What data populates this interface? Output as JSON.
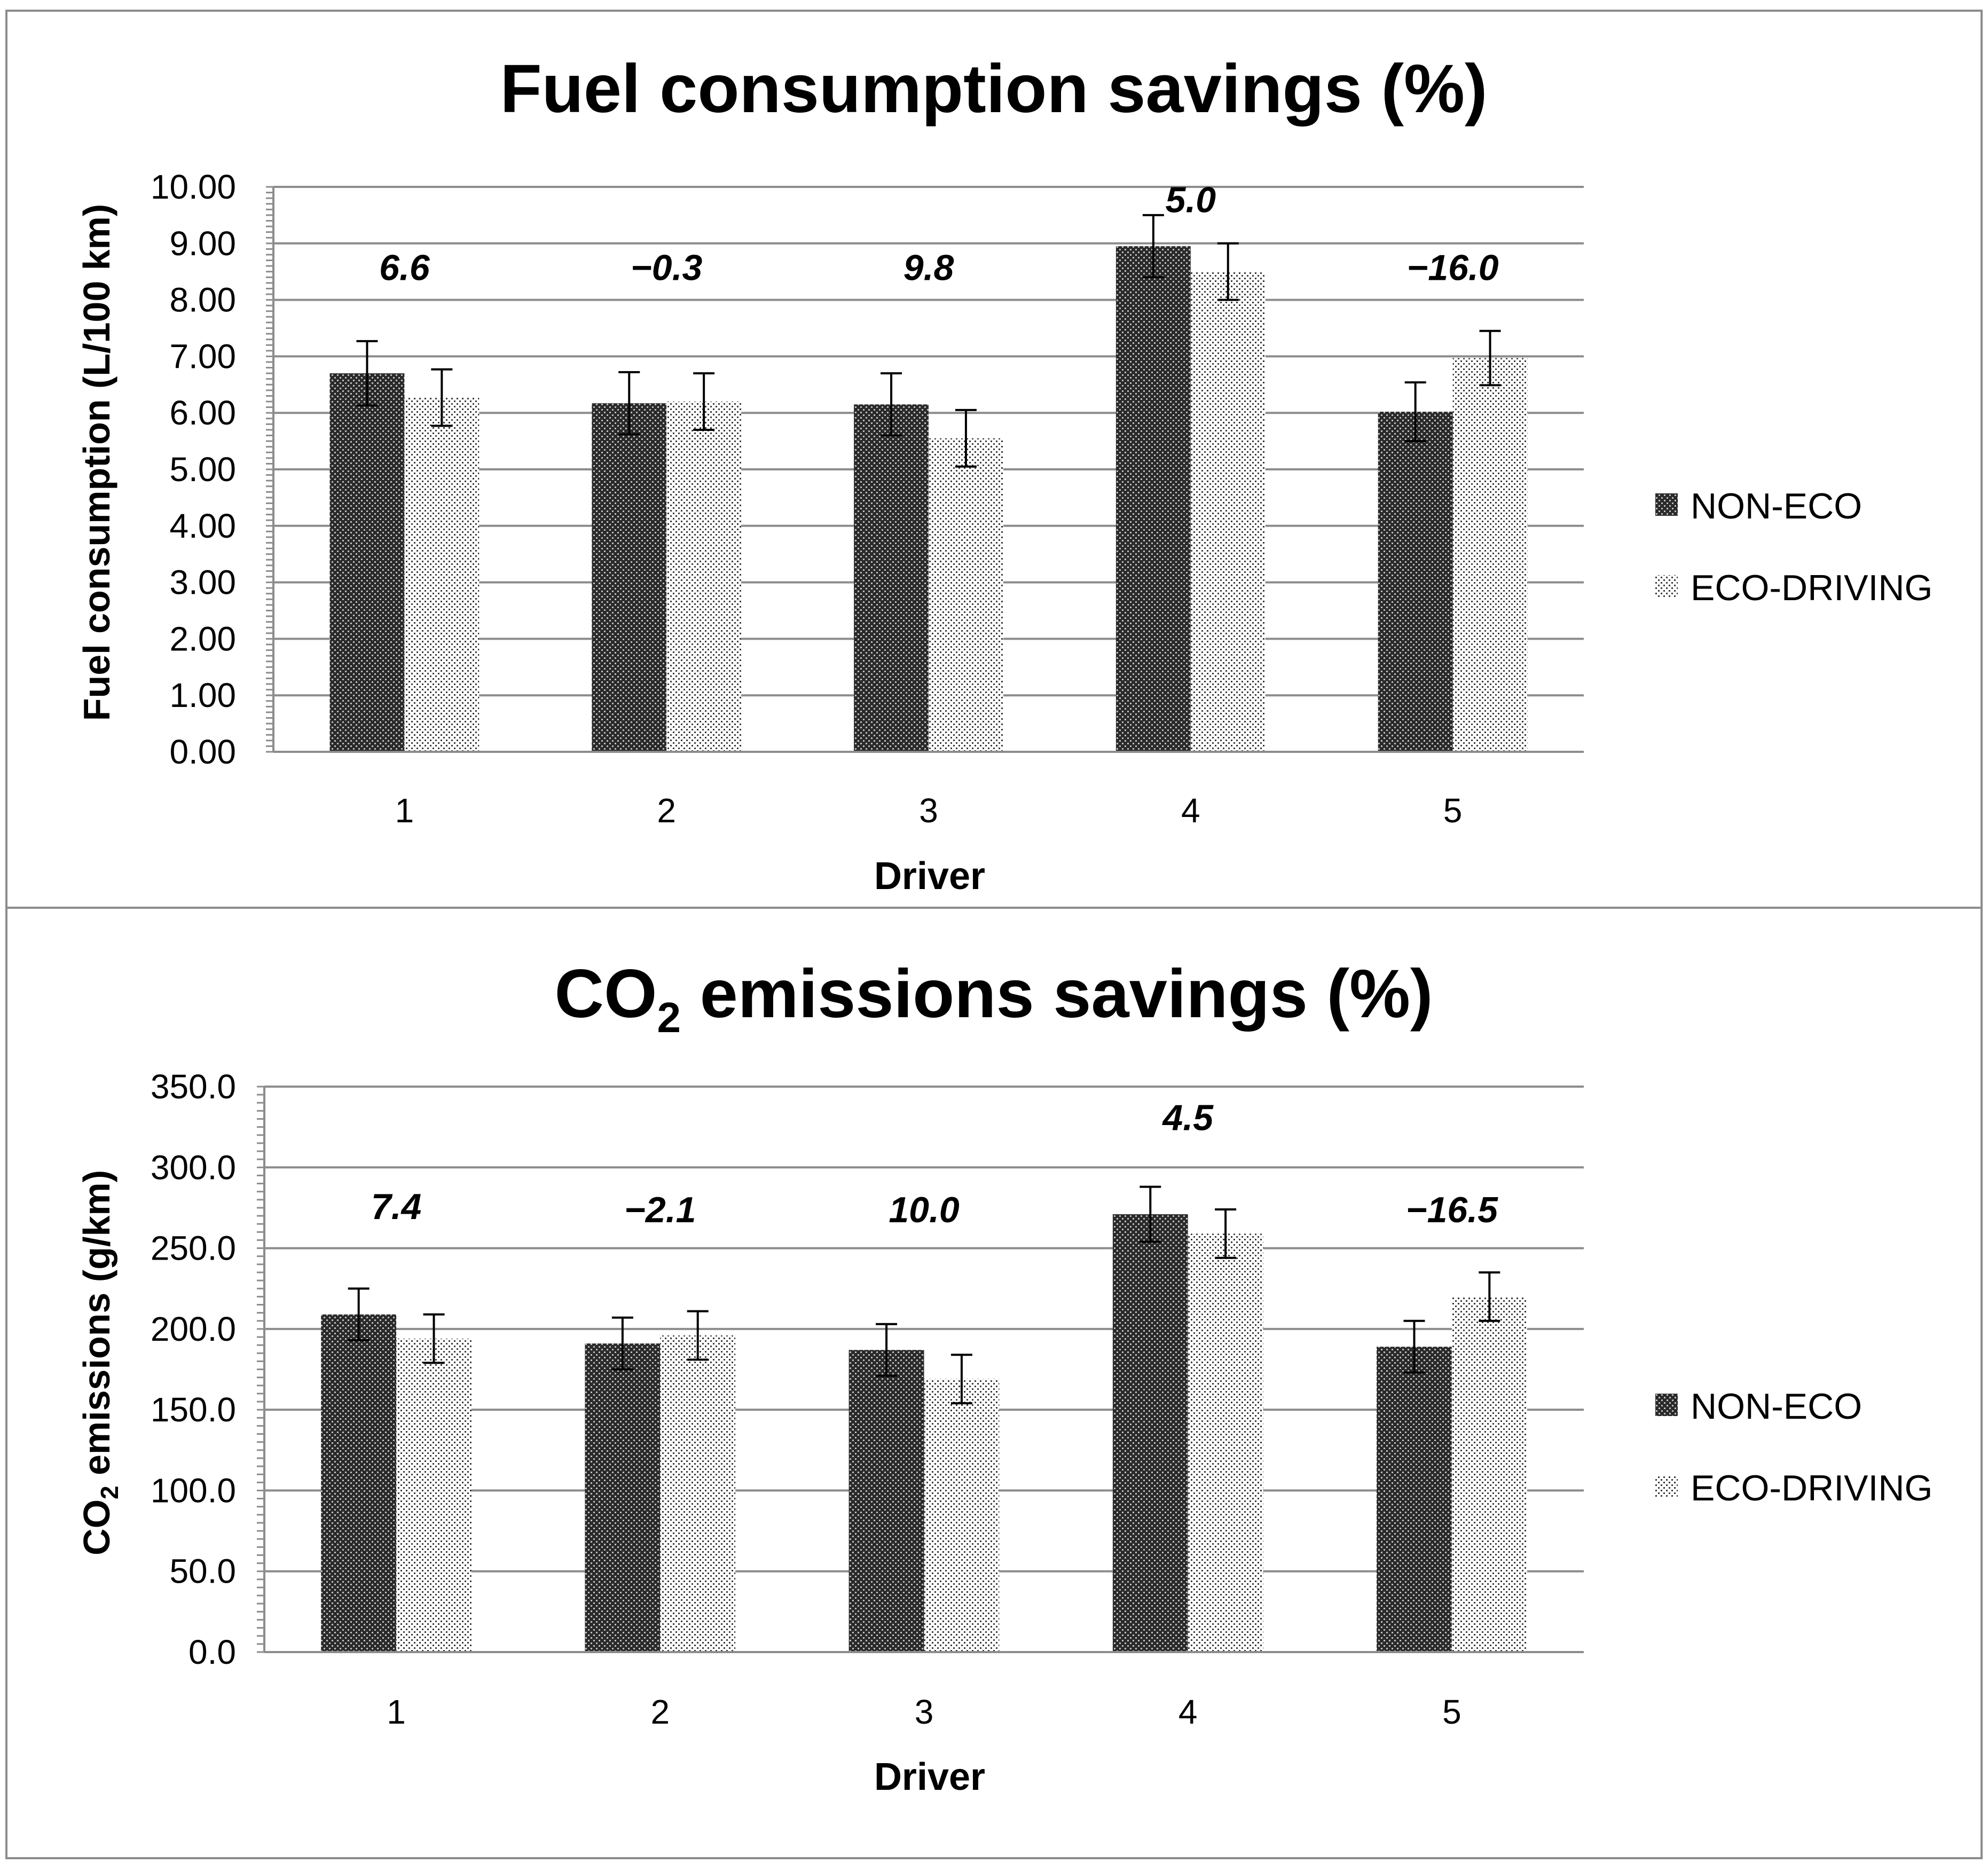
{
  "chart_data": [
    {
      "type": "bar",
      "title": "Fuel consumption savings (%)",
      "xlabel": "Driver",
      "ylabel": "Fuel consumption (L/100 km)",
      "ylim": [
        0,
        10
      ],
      "ytick_step": 1,
      "ytick_decimals": 2,
      "yticks": [
        "0.00",
        "1.00",
        "2.00",
        "3.00",
        "4.00",
        "5.00",
        "6.00",
        "7.00",
        "8.00",
        "9.00",
        "10.00"
      ],
      "categories": [
        "1",
        "2",
        "3",
        "4",
        "5"
      ],
      "series": [
        {
          "name": "NON-ECO",
          "values": [
            6.7,
            6.17,
            6.15,
            8.95,
            6.02
          ],
          "error": [
            0.57,
            0.55,
            0.55,
            0.55,
            0.52
          ]
        },
        {
          "name": "ECO-DRIVING",
          "values": [
            6.27,
            6.2,
            5.55,
            8.5,
            6.97
          ],
          "error": [
            0.5,
            0.5,
            0.5,
            0.5,
            0.48
          ]
        }
      ],
      "savings_labels": [
        "6.6",
        "−0.3",
        "9.8",
        "5.0",
        "−16.0"
      ],
      "savings_label_y": [
        8.35,
        8.35,
        8.35,
        9.55,
        8.35
      ],
      "legend_position": "right",
      "grid": true
    },
    {
      "type": "bar",
      "title_main": "CO",
      "title_sub": "2",
      "title_rest": " emissions savings (%)",
      "xlabel": "Driver",
      "ylabel_main": "CO",
      "ylabel_sub": "2",
      "ylabel_rest": " emissions (g/km)",
      "ylim": [
        0,
        350
      ],
      "ytick_step": 50,
      "ytick_decimals": 1,
      "yticks": [
        "0.0",
        "50.0",
        "100.0",
        "150.0",
        "200.0",
        "250.0",
        "300.0",
        "350.0"
      ],
      "categories": [
        "1",
        "2",
        "3",
        "4",
        "5"
      ],
      "series": [
        {
          "name": "NON-ECO",
          "values": [
            209,
            191,
            187,
            271,
            189
          ],
          "error": [
            16,
            16,
            16,
            17,
            16
          ]
        },
        {
          "name": "ECO-DRIVING",
          "values": [
            194,
            196,
            169,
            259,
            220
          ],
          "error": [
            15,
            15,
            15,
            15,
            15
          ]
        }
      ],
      "savings_labels": [
        "7.4",
        "−2.1",
        "10.0",
        "4.5",
        "−16.5"
      ],
      "savings_label_y": [
        268,
        266,
        266,
        323,
        266
      ],
      "legend_position": "right",
      "grid": true
    }
  ]
}
